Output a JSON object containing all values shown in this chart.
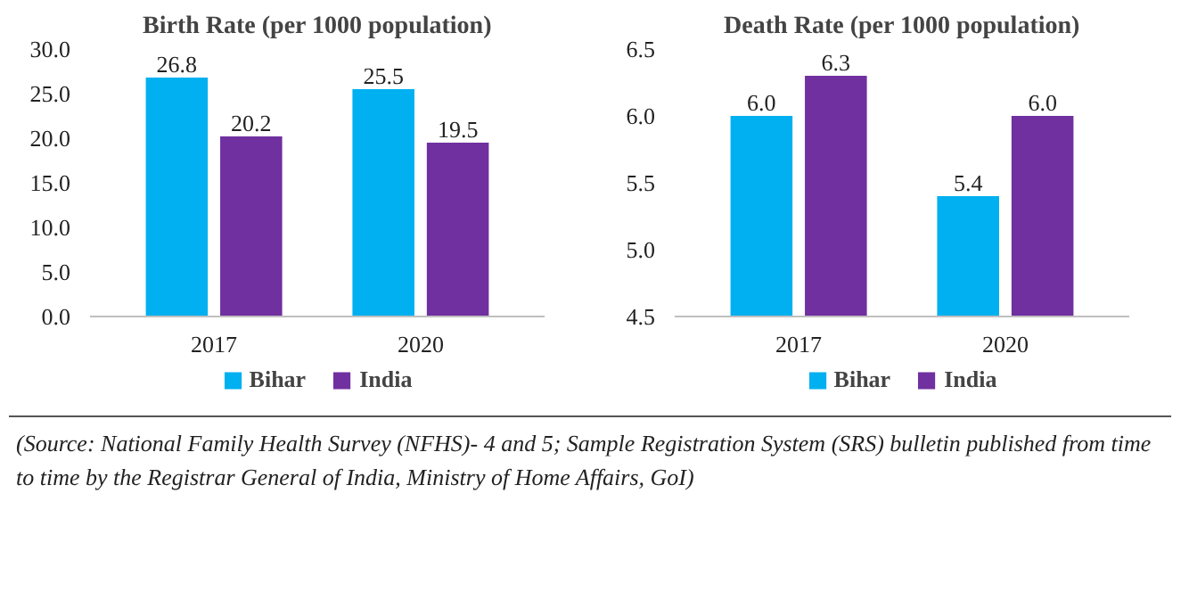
{
  "chart_data": [
    {
      "type": "bar",
      "title": "Birth Rate (per 1000 population)",
      "categories": [
        "2017",
        "2020"
      ],
      "series": [
        {
          "name": "Bihar",
          "color": "#00b0f0",
          "values": [
            26.8,
            25.5
          ],
          "value_labels": [
            "26.8",
            "25.5"
          ]
        },
        {
          "name": "India",
          "color": "#7030a0",
          "values": [
            20.2,
            19.5
          ],
          "value_labels": [
            "20.2",
            "19.5"
          ]
        }
      ],
      "ylim": [
        0,
        30
      ],
      "yticks": [
        {
          "value": 0,
          "label": "0.0"
        },
        {
          "value": 5,
          "label": "5.0"
        },
        {
          "value": 10,
          "label": "10.0"
        },
        {
          "value": 15,
          "label": "15.0"
        },
        {
          "value": 20,
          "label": "20.0"
        },
        {
          "value": 25,
          "label": "25.0"
        },
        {
          "value": 30,
          "label": "30.0"
        }
      ],
      "legend": "bottom",
      "annotations": [
        "(Source: National Family Health Survey (NFHS)- 4 and 5; Sample Registration System (SRS) bulletin published from time to time by the Registrar General of India, Ministry of Home Affairs, GoI)"
      ]
    },
    {
      "type": "bar",
      "title": "Death Rate (per 1000 population)",
      "categories": [
        "2017",
        "2020"
      ],
      "series": [
        {
          "name": "Bihar",
          "color": "#00b0f0",
          "values": [
            6.0,
            5.4
          ],
          "value_labels": [
            "6.0",
            "5.4"
          ]
        },
        {
          "name": "India",
          "color": "#7030a0",
          "values": [
            6.3,
            6.0
          ],
          "value_labels": [
            "6.3",
            "6.0"
          ]
        }
      ],
      "ylim": [
        4.5,
        6.5
      ],
      "yticks": [
        4.5,
        {
          "value": 5,
          "label": "5.0"
        },
        5.5,
        {
          "value": 6,
          "label": "6.0"
        },
        6.5
      ],
      "legend": "bottom"
    }
  ]
}
